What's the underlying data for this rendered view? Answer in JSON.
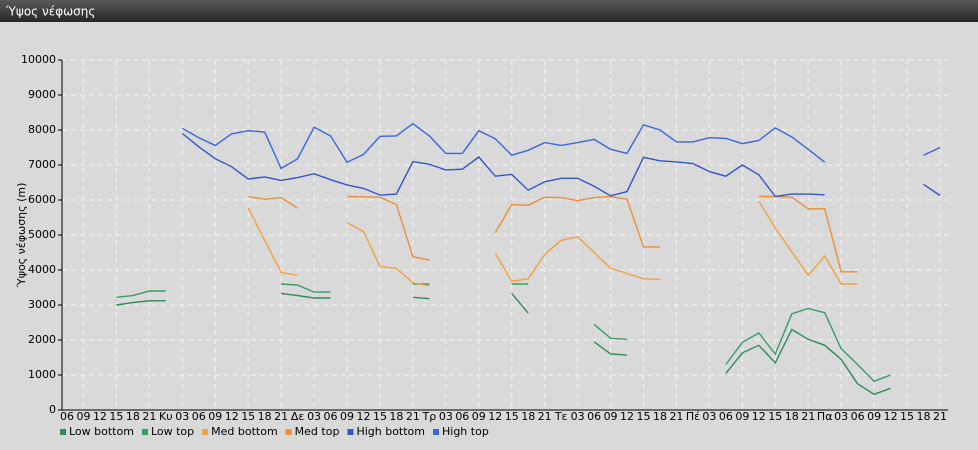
{
  "header": {
    "title": "Ύψος νέφωσης"
  },
  "chart_data": {
    "type": "line",
    "y_label": "Ύψος νέφωσης (m)",
    "categories": [
      "06",
      "09",
      "12",
      "15",
      "18",
      "21",
      "Κυ",
      "03",
      "06",
      "09",
      "12",
      "15",
      "18",
      "21",
      "Δε",
      "03",
      "06",
      "09",
      "12",
      "15",
      "18",
      "21",
      "Τρ",
      "03",
      "06",
      "09",
      "12",
      "15",
      "18",
      "21",
      "Τε",
      "03",
      "06",
      "09",
      "12",
      "15",
      "18",
      "21",
      "Πέ",
      "03",
      "06",
      "09",
      "12",
      "15",
      "18",
      "21",
      "Πα",
      "03",
      "06",
      "09",
      "12",
      "15",
      "18",
      "21"
    ],
    "ylim": [
      0,
      10000
    ],
    "yticks": [
      0,
      1000,
      2000,
      3000,
      4000,
      5000,
      6000,
      7000,
      8000,
      9000,
      10000
    ],
    "grid": true,
    "legend": "bottom-left",
    "series": [
      {
        "name": "Low bottom",
        "color": "#2e8b57",
        "values": [
          null,
          null,
          null,
          3000,
          3070,
          3120,
          3120,
          null,
          null,
          null,
          null,
          null,
          null,
          3330,
          3270,
          3200,
          3200,
          null,
          null,
          null,
          null,
          3220,
          3180,
          null,
          null,
          null,
          null,
          3330,
          2770,
          null,
          null,
          null,
          1950,
          1600,
          1570,
          null,
          null,
          null,
          null,
          null,
          1050,
          1630,
          1850,
          1350,
          2300,
          2020,
          1850,
          1450,
          750,
          450,
          620,
          null,
          null,
          null
        ]
      },
      {
        "name": "Low top",
        "color": "#3a9d68",
        "values": [
          null,
          null,
          null,
          3220,
          3270,
          3400,
          3400,
          null,
          null,
          null,
          null,
          null,
          null,
          3600,
          3570,
          3370,
          3370,
          null,
          null,
          null,
          null,
          3600,
          3600,
          null,
          null,
          null,
          null,
          3600,
          3600,
          null,
          null,
          null,
          2450,
          2050,
          2020,
          null,
          null,
          null,
          null,
          null,
          1300,
          1930,
          2200,
          1600,
          2750,
          2900,
          2780,
          1750,
          1300,
          820,
          1000,
          null,
          null,
          null
        ]
      },
      {
        "name": "Med bottom",
        "color": "#f0a040",
        "values": [
          null,
          null,
          null,
          null,
          null,
          null,
          null,
          null,
          null,
          null,
          null,
          5780,
          4850,
          3930,
          3850,
          null,
          null,
          5350,
          5100,
          4100,
          4050,
          3630,
          3550,
          null,
          null,
          null,
          4480,
          3680,
          3750,
          4450,
          4850,
          4950,
          4500,
          4050,
          3900,
          3750,
          3730,
          null,
          null,
          null,
          null,
          null,
          5970,
          5200,
          4520,
          3850,
          4400,
          3600,
          3600,
          null,
          null,
          null,
          null,
          null
        ]
      },
      {
        "name": "Med top",
        "color": "#e8903a",
        "values": [
          null,
          null,
          null,
          null,
          null,
          null,
          null,
          null,
          null,
          null,
          null,
          6100,
          6020,
          6070,
          5770,
          null,
          null,
          6100,
          6090,
          6080,
          5870,
          4380,
          4280,
          null,
          null,
          null,
          5070,
          5870,
          5850,
          6080,
          6070,
          5980,
          6070,
          6100,
          6020,
          4660,
          4660,
          null,
          null,
          null,
          null,
          null,
          6100,
          6100,
          6080,
          5750,
          5750,
          3950,
          3950,
          null,
          null,
          null,
          null,
          null
        ]
      },
      {
        "name": "High bottom",
        "color": "#3355cc",
        "values": [
          null,
          null,
          null,
          null,
          null,
          null,
          null,
          7900,
          7520,
          7180,
          6950,
          6600,
          6660,
          6560,
          6640,
          6750,
          6580,
          6430,
          6330,
          6140,
          6170,
          7100,
          7020,
          6860,
          6880,
          7230,
          6680,
          6730,
          6280,
          6520,
          6620,
          6620,
          6390,
          6120,
          6240,
          7220,
          7120,
          7090,
          7040,
          6810,
          6680,
          7000,
          6720,
          6100,
          6170,
          6170,
          6150,
          null,
          null,
          null,
          null,
          null,
          6450,
          6130
        ]
      },
      {
        "name": "High top",
        "color": "#3a66e0",
        "values": [
          null,
          null,
          null,
          null,
          null,
          null,
          null,
          8050,
          7780,
          7560,
          7890,
          7980,
          7940,
          6900,
          7180,
          8080,
          7830,
          7080,
          7300,
          7820,
          7830,
          8180,
          7830,
          7330,
          7330,
          7980,
          7750,
          7280,
          7420,
          7640,
          7560,
          7640,
          7730,
          7450,
          7330,
          8150,
          8000,
          7660,
          7660,
          7780,
          7760,
          7610,
          7700,
          8060,
          7800,
          7450,
          7080,
          null,
          null,
          null,
          null,
          null,
          7280,
          7500
        ]
      }
    ]
  }
}
